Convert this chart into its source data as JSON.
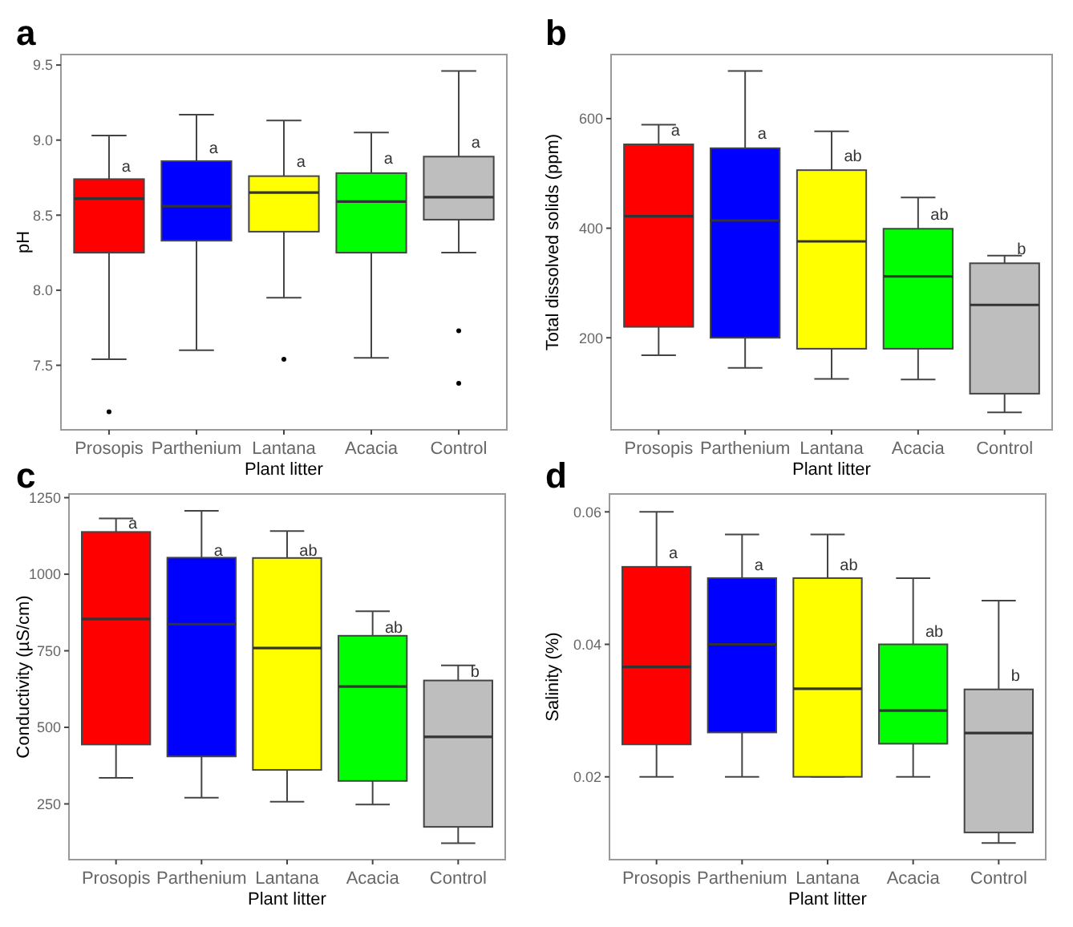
{
  "chart_data": [
    {
      "type": "box",
      "title": "a",
      "xlabel": "Plant litter",
      "ylabel": "pH",
      "categories": [
        "Prosopis",
        "Parthenium",
        "Lantana",
        "Acacia",
        "Control"
      ],
      "colors": [
        "#ff0000",
        "#0000ff",
        "#ffff00",
        "#00ff00",
        "#bebebe"
      ],
      "ylim": [
        7.07,
        9.57
      ],
      "yticks": [
        7.5,
        {
          "value": 8,
          "label": "8.0"
        },
        8.5,
        {
          "value": 9,
          "label": "9.0"
        },
        9.5
      ],
      "boxes": [
        {
          "low": 7.54,
          "q1": 8.25,
          "median": 8.61,
          "q3": 8.74,
          "high": 9.03,
          "outliers": [
            7.19
          ]
        },
        {
          "low": 7.6,
          "q1": 8.33,
          "median": 8.56,
          "q3": 8.86,
          "high": 9.17
        },
        {
          "low": 7.95,
          "q1": 8.39,
          "median": 8.65,
          "q3": 8.76,
          "high": 9.13,
          "outliers": [
            7.54
          ]
        },
        {
          "low": 7.55,
          "q1": 8.25,
          "median": 8.59,
          "q3": 8.78,
          "high": 9.05
        },
        {
          "low": 8.25,
          "q1": 8.47,
          "median": 8.62,
          "q3": 8.89,
          "high": 9.46,
          "outliers": [
            7.73,
            7.38
          ]
        }
      ],
      "annotations": [
        {
          "text": "a",
          "x": "Prosopis",
          "y": 8.83
        },
        {
          "text": "a",
          "x": "Parthenium",
          "y": 8.95
        },
        {
          "text": "a",
          "x": "Lantana",
          "y": 8.86
        },
        {
          "text": "a",
          "x": "Acacia",
          "y": 8.88
        },
        {
          "text": "a",
          "x": "Control",
          "y": 8.99
        }
      ]
    },
    {
      "type": "box",
      "title": "b",
      "xlabel": "Plant litter",
      "ylabel": "Total dissolved solids (ppm)",
      "categories": [
        "Prosopis",
        "Parthenium",
        "Lantana",
        "Acacia",
        "Control"
      ],
      "colors": [
        "#ff0000",
        "#0000ff",
        "#ffff00",
        "#00ff00",
        "#bebebe"
      ],
      "ylim": [
        32,
        717
      ],
      "yticks": [
        200,
        400,
        600
      ],
      "boxes": [
        {
          "low": 168,
          "q1": 220,
          "median": 422,
          "q3": 553,
          "high": 589
        },
        {
          "low": 145,
          "q1": 200,
          "median": 414,
          "q3": 546,
          "high": 687
        },
        {
          "low": 125,
          "q1": 180,
          "median": 376,
          "q3": 506,
          "high": 577
        },
        {
          "low": 124,
          "q1": 180,
          "median": 312,
          "q3": 399,
          "high": 456
        },
        {
          "low": 64,
          "q1": 98,
          "median": 260,
          "q3": 336,
          "high": 350
        }
      ],
      "annotations": [
        {
          "text": "a",
          "x": "Prosopis",
          "y": 580
        },
        {
          "text": "a",
          "x": "Parthenium",
          "y": 573
        },
        {
          "text": "ab",
          "x": "Lantana",
          "y": 532
        },
        {
          "text": "ab",
          "x": "Acacia",
          "y": 425
        },
        {
          "text": "b",
          "x": "Control",
          "y": 363
        }
      ]
    },
    {
      "type": "box",
      "title": "c",
      "xlabel": "Plant litter",
      "ylabel": "Conductivity (µS/cm)",
      "categories": [
        "Prosopis",
        "Parthenium",
        "Lantana",
        "Acacia",
        "Control"
      ],
      "colors": [
        "#ff0000",
        "#0000ff",
        "#ffff00",
        "#00ff00",
        "#bebebe"
      ],
      "ylim": [
        68,
        1262
      ],
      "yticks": [
        250,
        500,
        750,
        1000,
        1250
      ],
      "boxes": [
        {
          "low": 335,
          "q1": 444,
          "median": 854,
          "q3": 1138,
          "high": 1182
        },
        {
          "low": 270,
          "q1": 405,
          "median": 837,
          "q3": 1054,
          "high": 1207
        },
        {
          "low": 257,
          "q1": 361,
          "median": 759,
          "q3": 1053,
          "high": 1141
        },
        {
          "low": 248,
          "q1": 325,
          "median": 633,
          "q3": 799,
          "high": 879
        },
        {
          "low": 122,
          "q1": 175,
          "median": 469,
          "q3": 653,
          "high": 702
        }
      ],
      "annotations": [
        {
          "text": "a",
          "x": "Prosopis",
          "y": 1168
        },
        {
          "text": "a",
          "x": "Parthenium",
          "y": 1080
        },
        {
          "text": "ab",
          "x": "Lantana",
          "y": 1080
        },
        {
          "text": "ab",
          "x": "Acacia",
          "y": 828
        },
        {
          "text": "b",
          "x": "Control",
          "y": 684
        }
      ]
    },
    {
      "type": "box",
      "title": "d",
      "xlabel": "Plant litter",
      "ylabel": "Salinity (%)",
      "categories": [
        "Prosopis",
        "Parthenium",
        "Lantana",
        "Acacia",
        "Control"
      ],
      "colors": [
        "#ff0000",
        "#0000ff",
        "#ffff00",
        "#00ff00",
        "#bebebe"
      ],
      "ylim": [
        0.0075,
        0.0627
      ],
      "yticks": [
        0.02,
        0.04,
        0.06
      ],
      "boxes": [
        {
          "low": 0.02,
          "q1": 0.0249,
          "median": 0.0366,
          "q3": 0.0517,
          "high": 0.06
        },
        {
          "low": 0.02,
          "q1": 0.0267,
          "median": 0.04,
          "q3": 0.05,
          "high": 0.0566
        },
        {
          "low": 0.02,
          "q1": 0.02,
          "median": 0.0333,
          "q3": 0.05,
          "high": 0.0566
        },
        {
          "low": 0.02,
          "q1": 0.025,
          "median": 0.03,
          "q3": 0.04,
          "high": 0.05
        },
        {
          "low": 0.01,
          "q1": 0.0116,
          "median": 0.0266,
          "q3": 0.0332,
          "high": 0.0466
        }
      ],
      "annotations": [
        {
          "text": "a",
          "x": "Prosopis",
          "y": 0.0539
        },
        {
          "text": "a",
          "x": "Parthenium",
          "y": 0.0521
        },
        {
          "text": "ab",
          "x": "Lantana",
          "y": 0.0521
        },
        {
          "text": "ab",
          "x": "Acacia",
          "y": 0.042
        },
        {
          "text": "b",
          "x": "Control",
          "y": 0.0353
        }
      ]
    }
  ]
}
